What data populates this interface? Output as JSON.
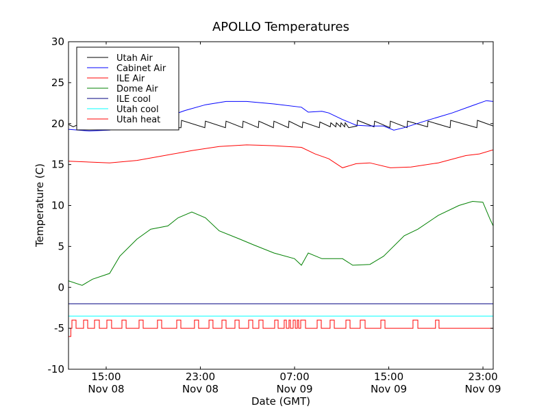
{
  "chart_data": {
    "type": "line",
    "title": "APOLLO Temperatures",
    "xlabel": "Date (GMT)",
    "ylabel": "Temperature (C)",
    "x_units": "hours since Nov 08 00:00 GMT",
    "xlim": [
      11.8,
      47.87
    ],
    "ylim": [
      -10,
      30
    ],
    "yticks": [
      -10,
      -5,
      0,
      5,
      10,
      15,
      20,
      25,
      30
    ],
    "xticks": [
      {
        "value": 15,
        "time": "15:00",
        "date": "Nov 08"
      },
      {
        "value": 23,
        "time": "23:00",
        "date": "Nov 08"
      },
      {
        "value": 31,
        "time": "07:00",
        "date": "Nov 09"
      },
      {
        "value": 39,
        "time": "15:00",
        "date": "Nov 09"
      },
      {
        "value": 47,
        "time": "23:00",
        "date": "Nov 09"
      }
    ],
    "legend_position": "top-left",
    "grid": false,
    "series": [
      {
        "name": "Utah Air",
        "color": "#000000",
        "points": [
          [
            11.8,
            19.9
          ],
          [
            12.2,
            19.6
          ],
          [
            12.5,
            19.8
          ],
          [
            13,
            19.5
          ],
          [
            21.35,
            19.5
          ],
          [
            21.4,
            20.4
          ],
          [
            23.38,
            19.5
          ],
          [
            23.43,
            20.3
          ],
          [
            25.13,
            19.5
          ],
          [
            25.18,
            20.3
          ],
          [
            26.58,
            19.5
          ],
          [
            26.63,
            20.3
          ],
          [
            27.92,
            19.5
          ],
          [
            27.97,
            20.3
          ],
          [
            29.2,
            19.5
          ],
          [
            29.25,
            20.3
          ],
          [
            30.48,
            19.5
          ],
          [
            30.53,
            20.3
          ],
          [
            31.65,
            19.5
          ],
          [
            31.7,
            20.2
          ],
          [
            33.1,
            19.5
          ],
          [
            33.15,
            20.2
          ],
          [
            34.03,
            19.6
          ],
          [
            34.08,
            20.1
          ],
          [
            34.5,
            19.6
          ],
          [
            34.55,
            20.1
          ],
          [
            34.9,
            19.6
          ],
          [
            34.95,
            20.1
          ],
          [
            35.25,
            19.6
          ],
          [
            35.3,
            20.1
          ],
          [
            35.6,
            19.5
          ],
          [
            36.3,
            19.7
          ],
          [
            36.35,
            20.4
          ],
          [
            37.75,
            19.6
          ],
          [
            37.8,
            20.3
          ],
          [
            39.09,
            19.5
          ],
          [
            39.14,
            20.3
          ],
          [
            40.55,
            19.5
          ],
          [
            40.6,
            20.3
          ],
          [
            42.29,
            19.6
          ],
          [
            42.34,
            20.3
          ],
          [
            44.21,
            19.5
          ],
          [
            44.26,
            20.4
          ],
          [
            46.48,
            19.5
          ],
          [
            46.53,
            20.4
          ],
          [
            47.87,
            19.7
          ]
        ]
      },
      {
        "name": "Cabinet Air",
        "color": "#0000ff",
        "points": [
          [
            11.8,
            19.3
          ],
          [
            13.55,
            19.1
          ],
          [
            15.29,
            19.2
          ],
          [
            17.62,
            19.7
          ],
          [
            19.94,
            20.7
          ],
          [
            21.69,
            21.6
          ],
          [
            23.43,
            22.3
          ],
          [
            25.18,
            22.7
          ],
          [
            26.93,
            22.7
          ],
          [
            29.25,
            22.4
          ],
          [
            31.58,
            22.0
          ],
          [
            32.16,
            21.4
          ],
          [
            33.32,
            21.5
          ],
          [
            33.91,
            21.3
          ],
          [
            35.07,
            20.5
          ],
          [
            36.23,
            19.8
          ],
          [
            37.4,
            19.7
          ],
          [
            38.56,
            19.7
          ],
          [
            39.43,
            19.2
          ],
          [
            40.31,
            19.5
          ],
          [
            42.05,
            20.3
          ],
          [
            44.38,
            21.3
          ],
          [
            46.12,
            22.2
          ],
          [
            47.29,
            22.8
          ],
          [
            47.87,
            22.7
          ]
        ]
      },
      {
        "name": "ILE Air",
        "color": "#ff0000",
        "points": [
          [
            11.8,
            15.4
          ],
          [
            15.29,
            15.2
          ],
          [
            17.62,
            15.5
          ],
          [
            19.94,
            16.1
          ],
          [
            22.27,
            16.7
          ],
          [
            24.6,
            17.2
          ],
          [
            26.93,
            17.4
          ],
          [
            29.25,
            17.3
          ],
          [
            31.58,
            17.1
          ],
          [
            32.74,
            16.3
          ],
          [
            33.91,
            15.7
          ],
          [
            35.07,
            14.6
          ],
          [
            36.23,
            15.1
          ],
          [
            37.4,
            15.2
          ],
          [
            39.14,
            14.6
          ],
          [
            40.89,
            14.7
          ],
          [
            43.21,
            15.2
          ],
          [
            45.54,
            16.1
          ],
          [
            46.7,
            16.3
          ],
          [
            47.87,
            16.8
          ]
        ]
      },
      {
        "name": "Dome Air",
        "color": "#008000",
        "points": [
          [
            11.8,
            0.8
          ],
          [
            12.96,
            0.25
          ],
          [
            13.84,
            1.0
          ],
          [
            15.29,
            1.7
          ],
          [
            16.16,
            3.8
          ],
          [
            17.62,
            5.9
          ],
          [
            18.78,
            7.1
          ],
          [
            20.24,
            7.5
          ],
          [
            21.11,
            8.5
          ],
          [
            22.27,
            9.2
          ],
          [
            23.43,
            8.5
          ],
          [
            24.6,
            6.9
          ],
          [
            26.34,
            5.9
          ],
          [
            27.5,
            5.2
          ],
          [
            29.25,
            4.2
          ],
          [
            30.99,
            3.5
          ],
          [
            31.58,
            2.7
          ],
          [
            32.16,
            4.2
          ],
          [
            33.32,
            3.5
          ],
          [
            35.07,
            3.5
          ],
          [
            35.94,
            2.7
          ],
          [
            37.4,
            2.8
          ],
          [
            38.56,
            3.8
          ],
          [
            40.31,
            6.3
          ],
          [
            41.47,
            7.1
          ],
          [
            43.21,
            8.8
          ],
          [
            44.96,
            10.0
          ],
          [
            46.12,
            10.5
          ],
          [
            46.99,
            10.4
          ],
          [
            47.58,
            8.4
          ],
          [
            47.87,
            7.5
          ]
        ]
      },
      {
        "name": "ILE cool",
        "color": "#000080",
        "points": [
          [
            11.8,
            -2
          ],
          [
            47.87,
            -2
          ]
        ]
      },
      {
        "name": "Utah cool",
        "color": "#00ffff",
        "points": [
          [
            11.8,
            -3.5
          ],
          [
            47.87,
            -3.5
          ]
        ]
      },
      {
        "name": "Utah heat",
        "color": "#ff0000",
        "base": -5,
        "on": -4,
        "initial": -6,
        "initial_until": 12.0,
        "on_intervals": [
          [
            12.09,
            12.44
          ],
          [
            13.08,
            13.43
          ],
          [
            14.01,
            14.42
          ],
          [
            15.06,
            15.46
          ],
          [
            16.34,
            16.69
          ],
          [
            17.79,
            18.14
          ],
          [
            19.36,
            19.71
          ],
          [
            20.99,
            21.34
          ],
          [
            22.5,
            22.85
          ],
          [
            23.73,
            24.07
          ],
          [
            24.83,
            25.18
          ],
          [
            25.94,
            26.29
          ],
          [
            27.1,
            27.45
          ],
          [
            27.97,
            28.32
          ],
          [
            29.31,
            29.6
          ],
          [
            30.12,
            30.3
          ],
          [
            30.53,
            30.65
          ],
          [
            30.88,
            31.06
          ],
          [
            31.23,
            31.35
          ],
          [
            31.52,
            31.93
          ],
          [
            32.92,
            33.27
          ],
          [
            34.02,
            34.37
          ],
          [
            35.36,
            35.71
          ],
          [
            36.58,
            36.99
          ],
          [
            38.33,
            38.68
          ],
          [
            41.06,
            41.47
          ],
          [
            42.97,
            43.27
          ]
        ]
      }
    ]
  }
}
